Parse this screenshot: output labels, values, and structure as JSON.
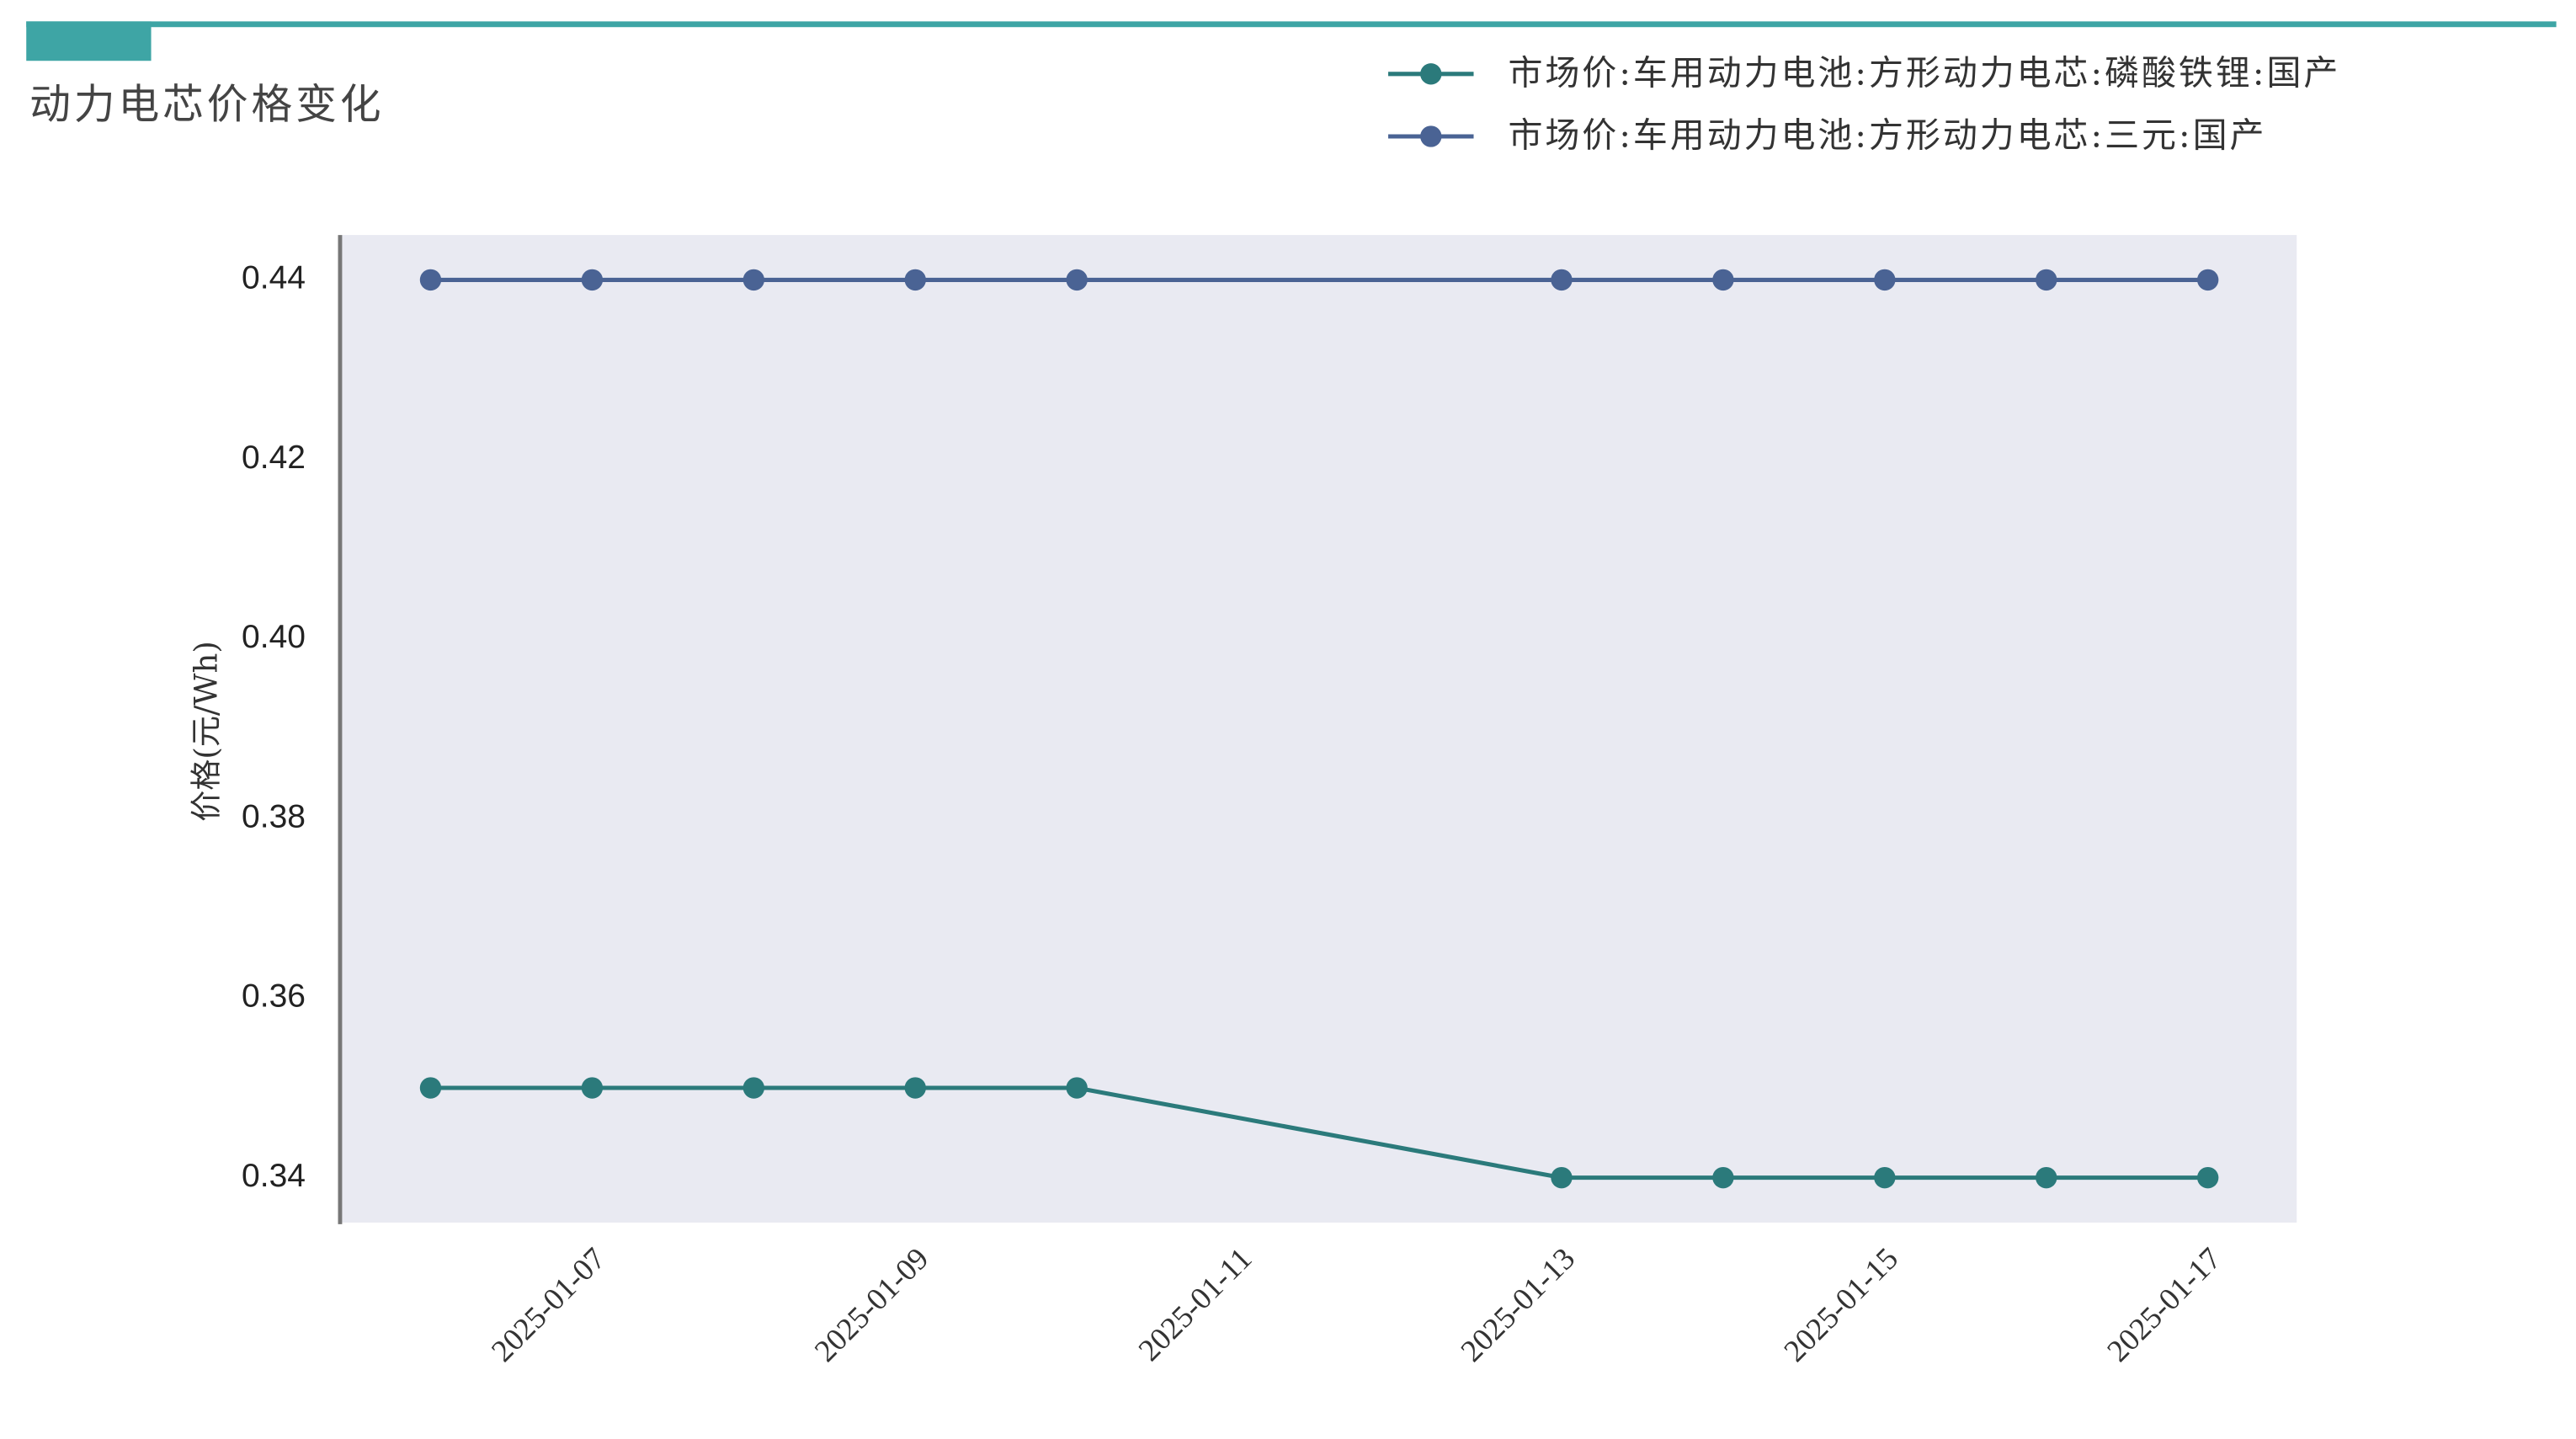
{
  "chart_data": {
    "type": "line",
    "title": "动力电芯价格变化",
    "y_label": "价格(元/Wh)",
    "x": [
      "2025-01-06",
      "2025-01-07",
      "2025-01-08",
      "2025-01-09",
      "2025-01-10",
      "2025-01-13",
      "2025-01-14",
      "2025-01-15",
      "2025-01-16",
      "2025-01-17"
    ],
    "xticks": [
      "2025-01-07",
      "2025-01-09",
      "2025-01-11",
      "2025-01-13",
      "2025-01-15",
      "2025-01-17"
    ],
    "series": [
      {
        "name": "市场价:车用动力电池:方形动力电芯:磷酸铁锂:国产",
        "color": "#2b7a7b",
        "values": [
          0.35,
          0.35,
          0.35,
          0.35,
          0.35,
          0.34,
          0.34,
          0.34,
          0.34,
          0.34
        ]
      },
      {
        "name": "市场价:车用动力电池:方形动力电芯:三元:国产",
        "color": "#4a6394",
        "values": [
          0.44,
          0.44,
          0.44,
          0.44,
          0.44,
          0.44,
          0.44,
          0.44,
          0.44,
          0.44
        ]
      }
    ],
    "ylim": [
      0.335,
      0.445
    ],
    "yticks": [
      0.34,
      0.36,
      0.38,
      {
        "value": 0.4,
        "label": "0.40"
      },
      0.42,
      0.44
    ],
    "grid": false
  }
}
